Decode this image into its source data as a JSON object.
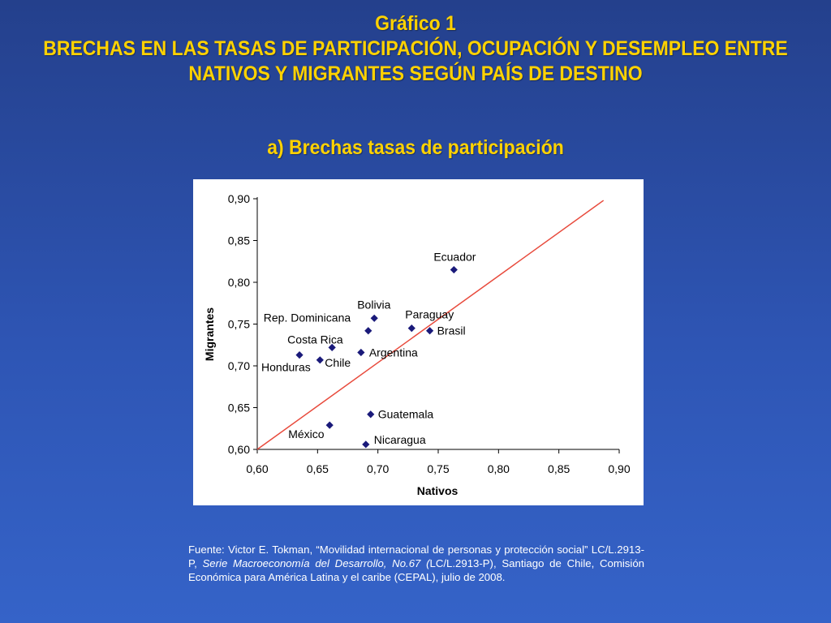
{
  "header": {
    "title_line1": "Gráfico 1",
    "title_line2": "BRECHAS EN LAS TASAS DE PARTICIPACIÓN, OCUPACIÓN Y DESEMPLEO ENTRE",
    "title_line3": "NATIVOS Y MIGRANTES SEGÚN PAÍS DE DESTINO",
    "subtitle": "a) Brechas tasas de participación"
  },
  "colors": {
    "background": "#2e55b4",
    "title": "#ffd200",
    "marker": "#1a1a7a",
    "reference_line": "#e84a3c",
    "source_text": "#ffffff"
  },
  "chart_data": {
    "type": "scatter",
    "xlabel": "Nativos",
    "ylabel": "Migrantes",
    "xlim": [
      0.6,
      0.9
    ],
    "ylim": [
      0.6,
      0.9
    ],
    "x_ticks": [
      "0,60",
      "0,65",
      "0,70",
      "0,75",
      "0,80",
      "0,85",
      "0,90"
    ],
    "y_ticks": [
      "0,90",
      "0,85",
      "0,80",
      "0,75",
      "0,70",
      "0,65",
      "0,60"
    ],
    "grid": false,
    "reference_line": {
      "from": [
        0.6,
        0.6
      ],
      "to": [
        0.887,
        0.898
      ]
    },
    "points": [
      {
        "label": "Ecuador",
        "x": 0.763,
        "y": 0.815
      },
      {
        "label": "Bolivia",
        "x": 0.697,
        "y": 0.757
      },
      {
        "label": "Rep. Dominicana",
        "x": 0.692,
        "y": 0.742
      },
      {
        "label": "Paraguay",
        "x": 0.728,
        "y": 0.745
      },
      {
        "label": "Brasil",
        "x": 0.743,
        "y": 0.742
      },
      {
        "label": "Costa Rica",
        "x": 0.662,
        "y": 0.722
      },
      {
        "label": "Argentina",
        "x": 0.686,
        "y": 0.716
      },
      {
        "label": "Honduras",
        "x": 0.635,
        "y": 0.713
      },
      {
        "label": "Chile",
        "x": 0.652,
        "y": 0.707
      },
      {
        "label": "Guatemala",
        "x": 0.694,
        "y": 0.642
      },
      {
        "label": "México",
        "x": 0.66,
        "y": 0.629
      },
      {
        "label": "Nicaragua",
        "x": 0.69,
        "y": 0.606
      }
    ]
  },
  "source": {
    "part1": "Fuente: Victor E. Tokman, “Movilidad internacional de personas y protección social” LC/L.2913-P, ",
    "italic1": "Serie Macroeconomía del Desarrollo, No.67 (",
    "part2": "LC/L.2913-P), Santiago de Chile, Comisión Económica para América Latina y el caribe (CEPAL), julio de 2008."
  }
}
